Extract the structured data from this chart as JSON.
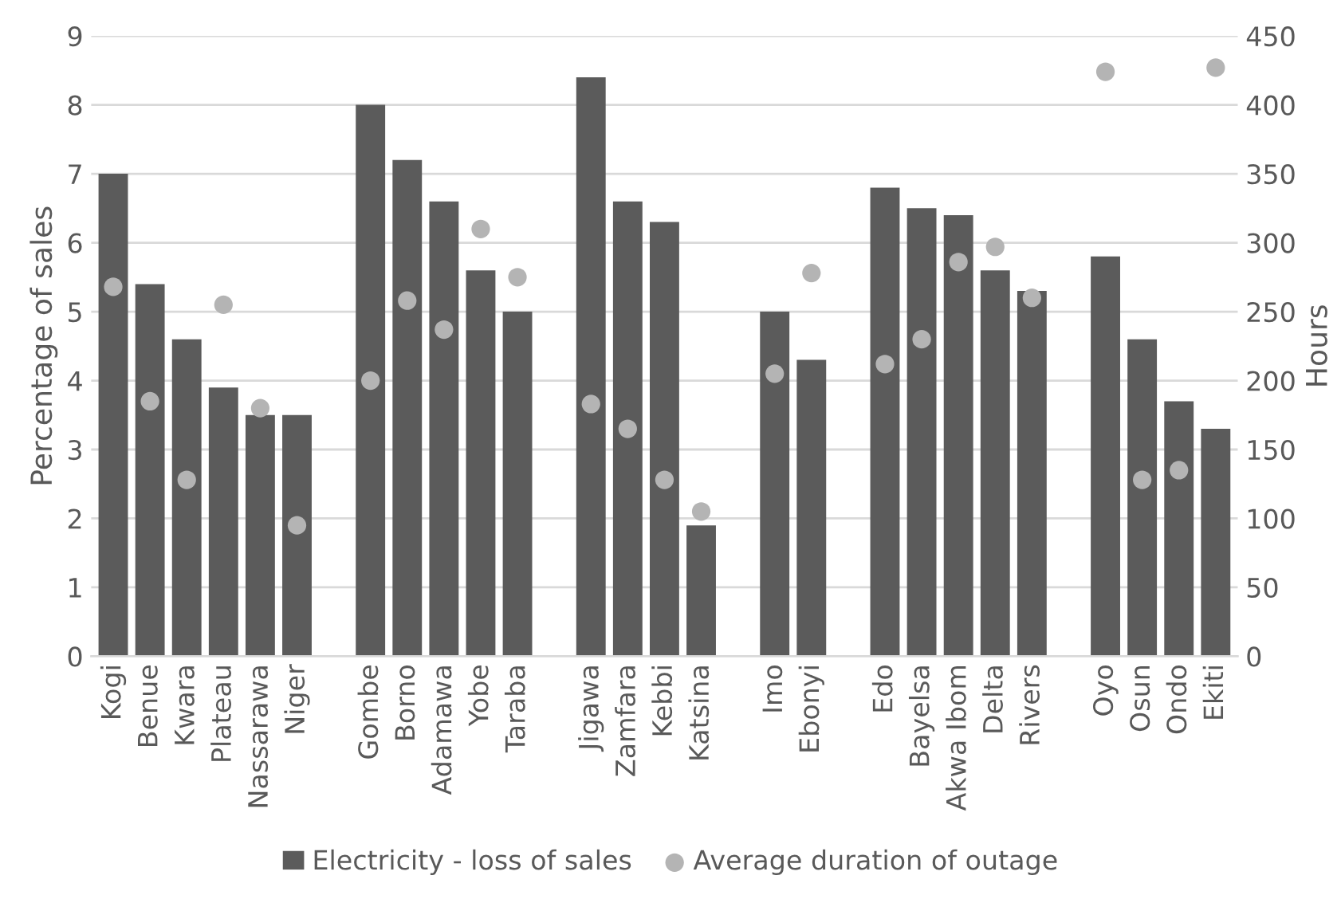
{
  "chart_data": {
    "type": "bar",
    "ylabel": "Percentage of sales",
    "y2label": "Hours",
    "categories": [
      "Kogi",
      "Benue",
      "Kwara",
      "Plateau",
      "Nassarawa",
      "Niger",
      null,
      "Gombe",
      "Borno",
      "Adamawa",
      "Yobe",
      "Taraba",
      null,
      "Jigawa",
      "Zamfara",
      "Kebbi",
      "Katsina",
      null,
      "Imo",
      "Ebonyi",
      null,
      "Edo",
      "Bayelsa",
      "Akwa Ibom",
      "Delta",
      "Rivers",
      null,
      "Oyo",
      "Osun",
      "Ondo",
      "Ekiti"
    ],
    "series": [
      {
        "name": "Electricity - loss of sales",
        "color": "#5b5b5b",
        "values": [
          7.0,
          5.4,
          4.6,
          3.9,
          3.5,
          3.5,
          null,
          8.0,
          7.2,
          6.6,
          5.6,
          5.0,
          null,
          8.4,
          6.6,
          6.3,
          1.9,
          null,
          5.0,
          4.3,
          null,
          6.8,
          6.5,
          6.4,
          5.6,
          5.3,
          null,
          5.8,
          4.6,
          3.7,
          3.3
        ]
      },
      {
        "name": "Average duration of outage",
        "color": "#b4b4b4",
        "type": "scatter",
        "axis": "y2",
        "marker": "circle",
        "values": [
          268,
          185,
          128,
          255,
          180,
          95,
          null,
          200,
          258,
          237,
          310,
          275,
          null,
          183,
          165,
          128,
          105,
          null,
          205,
          278,
          null,
          212,
          230,
          286,
          297,
          260,
          null,
          424,
          128,
          135,
          427
        ]
      }
    ],
    "ylim": [
      0,
      9
    ],
    "yticks": [
      0,
      1,
      2,
      3,
      4,
      5,
      6,
      7,
      8,
      9
    ],
    "y2lim": [
      0,
      450
    ],
    "y2ticks": [
      0,
      50,
      100,
      150,
      200,
      250,
      300,
      350,
      400,
      450
    ],
    "grid": "y",
    "legend": "bottom"
  }
}
